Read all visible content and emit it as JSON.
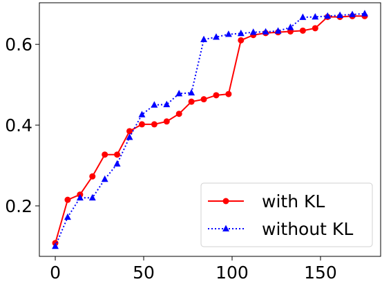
{
  "chart_data": {
    "type": "line",
    "title": "",
    "xlabel": "",
    "ylabel": "",
    "xlim": [
      -9,
      184
    ],
    "ylim": [
      0.075,
      0.703
    ],
    "xticks": [
      0,
      50,
      100,
      150
    ],
    "xtick_labels": [
      "0",
      "50",
      "100",
      "150"
    ],
    "yticks": [
      0.2,
      0.4,
      0.6
    ],
    "ytick_labels": [
      "0.2",
      "0.4",
      "0.6"
    ],
    "grid": false,
    "legend_position": "lower-right",
    "series": [
      {
        "name": "with KL",
        "color": "#ff0000",
        "line_style": "solid",
        "marker": "circle",
        "x": [
          0,
          7,
          14,
          21,
          28,
          35,
          42,
          49,
          56,
          63,
          70,
          77,
          84,
          91,
          98,
          105,
          112,
          119,
          126,
          133,
          140,
          147,
          154,
          161,
          168,
          175
        ],
        "y": [
          0.108,
          0.215,
          0.228,
          0.273,
          0.327,
          0.327,
          0.385,
          0.402,
          0.402,
          0.409,
          0.428,
          0.458,
          0.464,
          0.474,
          0.477,
          0.61,
          0.623,
          0.628,
          0.63,
          0.632,
          0.634,
          0.64,
          0.668,
          0.668,
          0.67,
          0.67
        ]
      },
      {
        "name": "without KL",
        "color": "#0000ff",
        "line_style": "dotted",
        "marker": "triangle",
        "x": [
          0,
          7,
          14,
          21,
          28,
          35,
          42,
          49,
          56,
          63,
          70,
          77,
          84,
          91,
          98,
          105,
          112,
          119,
          126,
          133,
          140,
          147,
          154,
          161,
          168,
          175
        ],
        "y": [
          0.1,
          0.172,
          0.22,
          0.22,
          0.266,
          0.304,
          0.37,
          0.426,
          0.45,
          0.451,
          0.478,
          0.48,
          0.612,
          0.618,
          0.625,
          0.627,
          0.63,
          0.631,
          0.633,
          0.642,
          0.667,
          0.668,
          0.67,
          0.672,
          0.674,
          0.676
        ]
      }
    ]
  }
}
